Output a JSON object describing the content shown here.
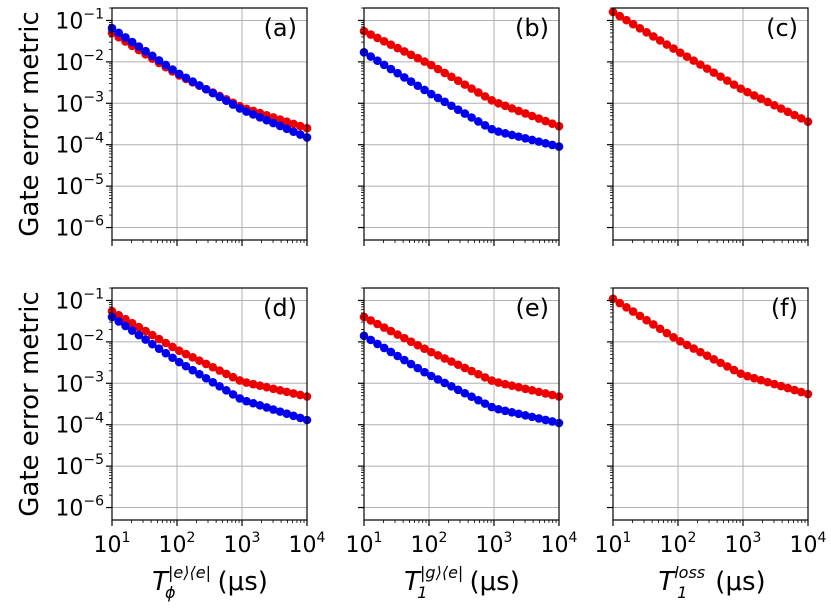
{
  "ylabel": "Gate error metric",
  "xlabels": [
    {
      "base": "T",
      "sub": "ϕ",
      "sup": "|e⟩⟨e|",
      "unit": "(μs)"
    },
    {
      "base": "T",
      "sub": "1",
      "sup": "|g⟩⟨e|",
      "unit": "(μs)"
    },
    {
      "base": "T",
      "sub": "1",
      "sup": "loss",
      "unit": "(μs)"
    }
  ],
  "x_ticks": [
    {
      "base": "10",
      "exp": "1"
    },
    {
      "base": "10",
      "exp": "2"
    },
    {
      "base": "10",
      "exp": "3"
    },
    {
      "base": "10",
      "exp": "4"
    }
  ],
  "y_ticks": [
    {
      "base": "10",
      "exp": "−1"
    },
    {
      "base": "10",
      "exp": "−2"
    },
    {
      "base": "10",
      "exp": "−3"
    },
    {
      "base": "10",
      "exp": "−4"
    },
    {
      "base": "10",
      "exp": "−5"
    },
    {
      "base": "10",
      "exp": "−6"
    }
  ],
  "colors": {
    "red": "#ee0000",
    "blue": "#0000ee"
  },
  "chart_data": [
    {
      "type": "scatter",
      "label": "(a)",
      "x_scale": "log",
      "y_scale": "log",
      "xlim": [
        10,
        10000
      ],
      "ylim": [
        5e-07,
        0.2
      ],
      "grid": true,
      "series": [
        {
          "color": "red",
          "x_range": [
            10,
            10000
          ],
          "n_points": 30,
          "y_anchors": [
            {
              "x": 10,
              "y": 0.05
            },
            {
              "x": 100,
              "y": 0.005
            },
            {
              "x": 1000,
              "y": 0.0008
            },
            {
              "x": 10000,
              "y": 0.00025
            }
          ]
        },
        {
          "color": "blue",
          "x_range": [
            10,
            10000
          ],
          "n_points": 30,
          "y_anchors": [
            {
              "x": 10,
              "y": 0.065
            },
            {
              "x": 100,
              "y": 0.0055
            },
            {
              "x": 1000,
              "y": 0.0007
            },
            {
              "x": 10000,
              "y": 0.00015
            }
          ]
        }
      ]
    },
    {
      "type": "scatter",
      "label": "(b)",
      "x_scale": "log",
      "y_scale": "log",
      "xlim": [
        10,
        10000
      ],
      "ylim": [
        5e-07,
        0.2
      ],
      "grid": true,
      "series": [
        {
          "color": "red",
          "x_range": [
            10,
            10000
          ],
          "n_points": 30,
          "y_anchors": [
            {
              "x": 10,
              "y": 0.055
            },
            {
              "x": 100,
              "y": 0.009
            },
            {
              "x": 1000,
              "y": 0.0011
            },
            {
              "x": 10000,
              "y": 0.00028
            }
          ]
        },
        {
          "color": "blue",
          "x_range": [
            10,
            10000
          ],
          "n_points": 30,
          "y_anchors": [
            {
              "x": 10,
              "y": 0.017
            },
            {
              "x": 100,
              "y": 0.0018
            },
            {
              "x": 1000,
              "y": 0.00022
            },
            {
              "x": 10000,
              "y": 9e-05
            }
          ]
        }
      ]
    },
    {
      "type": "scatter",
      "label": "(c)",
      "x_scale": "log",
      "y_scale": "log",
      "xlim": [
        10,
        10000
      ],
      "ylim": [
        5e-07,
        0.2
      ],
      "grid": true,
      "series": [
        {
          "color": "red",
          "x_range": [
            10,
            10000
          ],
          "n_points": 30,
          "y_anchors": [
            {
              "x": 10,
              "y": 0.16
            },
            {
              "x": 100,
              "y": 0.018
            },
            {
              "x": 1000,
              "y": 0.0021
            },
            {
              "x": 10000,
              "y": 0.00036
            }
          ]
        }
      ]
    },
    {
      "type": "scatter",
      "label": "(d)",
      "x_scale": "log",
      "y_scale": "log",
      "xlim": [
        10,
        10000
      ],
      "ylim": [
        5e-07,
        0.2
      ],
      "grid": true,
      "series": [
        {
          "color": "red",
          "x_range": [
            10,
            10000
          ],
          "n_points": 30,
          "y_anchors": [
            {
              "x": 10,
              "y": 0.055
            },
            {
              "x": 100,
              "y": 0.0065
            },
            {
              "x": 1000,
              "y": 0.0011
            },
            {
              "x": 10000,
              "y": 0.00048
            }
          ]
        },
        {
          "color": "blue",
          "x_range": [
            10,
            10000
          ],
          "n_points": 30,
          "y_anchors": [
            {
              "x": 10,
              "y": 0.04
            },
            {
              "x": 100,
              "y": 0.0035
            },
            {
              "x": 1000,
              "y": 0.0004
            },
            {
              "x": 10000,
              "y": 0.00013
            }
          ]
        }
      ]
    },
    {
      "type": "scatter",
      "label": "(e)",
      "x_scale": "log",
      "y_scale": "log",
      "xlim": [
        10,
        10000
      ],
      "ylim": [
        5e-07,
        0.2
      ],
      "grid": true,
      "series": [
        {
          "color": "red",
          "x_range": [
            10,
            10000
          ],
          "n_points": 30,
          "y_anchors": [
            {
              "x": 10,
              "y": 0.04
            },
            {
              "x": 100,
              "y": 0.006
            },
            {
              "x": 1000,
              "y": 0.0011
            },
            {
              "x": 10000,
              "y": 0.00048
            }
          ]
        },
        {
          "color": "blue",
          "x_range": [
            10,
            10000
          ],
          "n_points": 30,
          "y_anchors": [
            {
              "x": 10,
              "y": 0.014
            },
            {
              "x": 100,
              "y": 0.0016
            },
            {
              "x": 1000,
              "y": 0.00025
            },
            {
              "x": 10000,
              "y": 0.00011
            }
          ]
        }
      ]
    },
    {
      "type": "scatter",
      "label": "(f)",
      "x_scale": "log",
      "y_scale": "log",
      "xlim": [
        10,
        10000
      ],
      "ylim": [
        5e-07,
        0.2
      ],
      "grid": true,
      "series": [
        {
          "color": "red",
          "x_range": [
            10,
            10000
          ],
          "n_points": 30,
          "y_anchors": [
            {
              "x": 10,
              "y": 0.11
            },
            {
              "x": 100,
              "y": 0.011
            },
            {
              "x": 1000,
              "y": 0.0016
            },
            {
              "x": 10000,
              "y": 0.00055
            }
          ]
        }
      ]
    }
  ]
}
